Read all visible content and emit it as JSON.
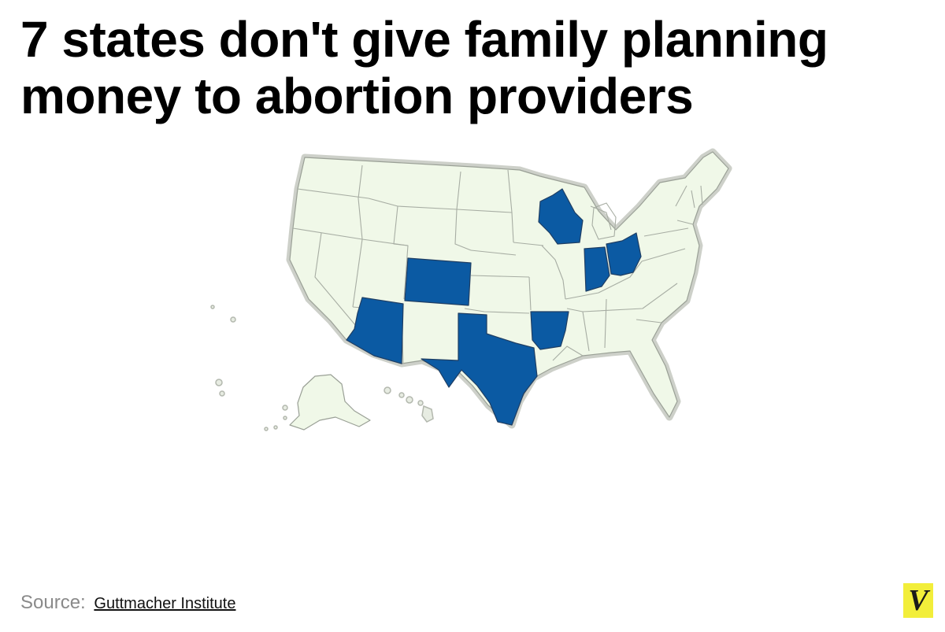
{
  "title": "7 states don't give family planning money to abortion providers",
  "map": {
    "region": "United States",
    "highlighted_states": [
      "Arizona",
      "Colorado",
      "Texas",
      "Arkansas",
      "Wisconsin",
      "Indiana",
      "Ohio"
    ],
    "colors": {
      "highlight": "#0b5aa3",
      "default_fill": "#f0f8e8",
      "border": "#9aa096",
      "outline": "#c8cbc4"
    }
  },
  "source": {
    "label": "Source:",
    "link_text": "Guttmacher Institute"
  },
  "logo": {
    "letter": "V",
    "color": "#f2ee3a"
  }
}
